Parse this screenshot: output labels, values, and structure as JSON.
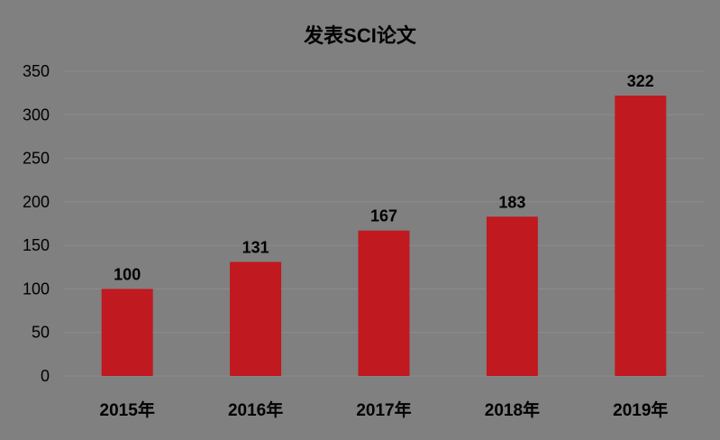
{
  "chart_data": {
    "type": "bar",
    "title": "发表SCI论文",
    "categories": [
      "2015年",
      "2016年",
      "2017年",
      "2018年",
      "2019年"
    ],
    "values": [
      100,
      131,
      167,
      183,
      322
    ],
    "ylim": [
      0,
      350
    ],
    "yticks": [
      "0",
      "50",
      "100",
      "150",
      "200",
      "250",
      "300",
      "350"
    ],
    "data_labels": [
      "100",
      "131",
      "167",
      "183",
      "322"
    ],
    "grid": true,
    "bar_color": "#C0191F",
    "grid_color": "#8C8C8C"
  }
}
